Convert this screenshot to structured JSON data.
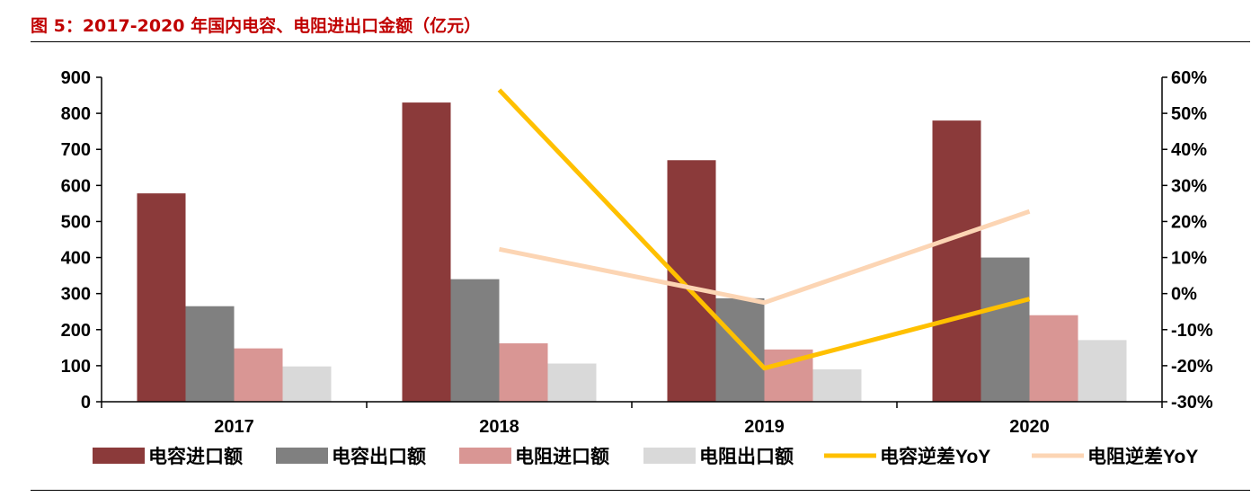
{
  "figure": {
    "title": "图 5：2017-2020 年国内电容、电阻进出口金额（亿元）"
  },
  "colors": {
    "title": "#c00000",
    "cap_import": "#8b3a3a",
    "cap_export": "#808080",
    "res_import": "#d99694",
    "res_export": "#d9d9d9",
    "cap_yoy": "#ffc000",
    "res_yoy": "#fcd5b4"
  },
  "chart_data": {
    "type": "bar",
    "categories": [
      "2017",
      "2018",
      "2019",
      "2020"
    ],
    "series": [
      {
        "name": "电容进口额",
        "kind": "bar",
        "axis": "left",
        "color": "#8b3a3a",
        "values": [
          578,
          830,
          670,
          780
        ]
      },
      {
        "name": "电容出口额",
        "kind": "bar",
        "axis": "left",
        "color": "#808080",
        "values": [
          265,
          340,
          287,
          400
        ]
      },
      {
        "name": "电阻进口额",
        "kind": "bar",
        "axis": "left",
        "color": "#d99694",
        "values": [
          148,
          162,
          145,
          240
        ]
      },
      {
        "name": "电阻出口额",
        "kind": "bar",
        "axis": "left",
        "color": "#d9d9d9",
        "values": [
          98,
          106,
          90,
          171
        ]
      },
      {
        "name": "电容逆差YoY",
        "kind": "line",
        "axis": "right",
        "color": "#ffc000",
        "values": [
          null,
          56.5,
          -20.7,
          -1.5
        ]
      },
      {
        "name": "电阻逆差YoY",
        "kind": "line",
        "axis": "right",
        "color": "#fcd5b4",
        "values": [
          null,
          12.3,
          -2.5,
          22.8
        ]
      }
    ],
    "y_left": {
      "min": 0,
      "max": 900,
      "step": 100,
      "tick_labels": [
        "0",
        "100",
        "200",
        "300",
        "400",
        "500",
        "600",
        "700",
        "800",
        "900"
      ]
    },
    "y_right": {
      "min": -30,
      "max": 60,
      "step": 10,
      "tick_labels": [
        "-30%",
        "-20%",
        "-10%",
        "0%",
        "10%",
        "20%",
        "30%",
        "40%",
        "50%",
        "60%"
      ]
    },
    "grid": false,
    "legend": "bottom"
  }
}
